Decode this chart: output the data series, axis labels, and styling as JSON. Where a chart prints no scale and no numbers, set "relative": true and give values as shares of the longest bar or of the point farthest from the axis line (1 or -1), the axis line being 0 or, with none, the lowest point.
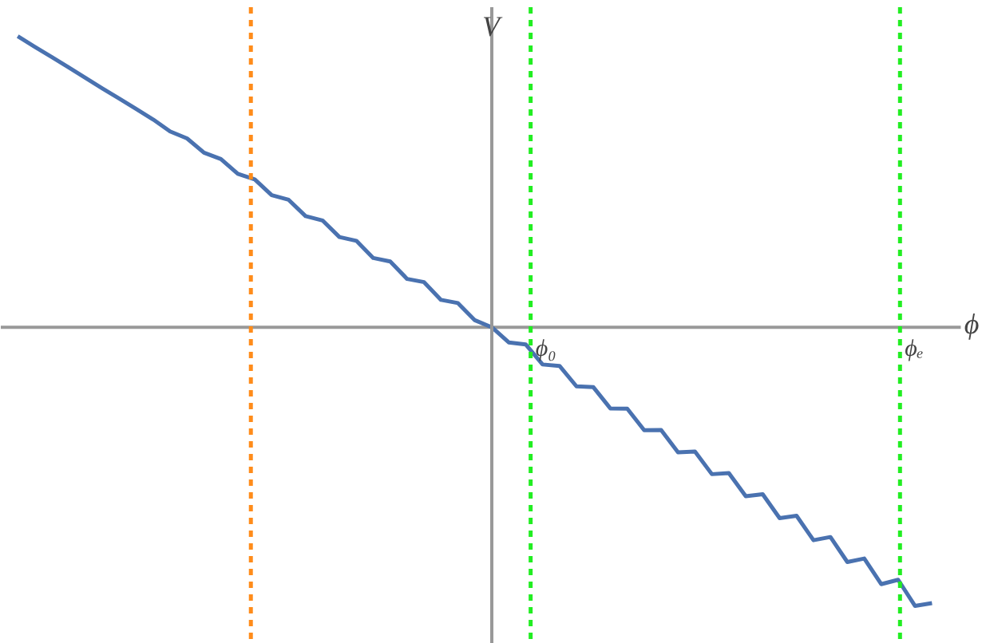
{
  "chart_data": {
    "type": "line",
    "relative": true,
    "xlabel": "ϕ",
    "ylabel": "V",
    "categories": [
      null,
      null,
      null,
      null,
      null,
      null,
      null,
      null,
      null,
      null,
      null,
      null,
      null,
      null,
      null,
      null,
      null,
      null,
      null,
      null,
      null,
      null,
      null,
      null,
      null,
      null,
      null,
      null,
      null,
      null,
      null,
      null,
      null,
      null,
      null,
      null,
      null,
      null,
      null,
      null,
      null,
      null,
      null,
      null,
      null,
      null,
      null,
      null,
      null,
      null,
      null,
      null,
      null,
      null,
      null
    ],
    "series": [
      {
        "color": "#4a72b0",
        "values": [
          1.0,
          0.964,
          0.929,
          0.893,
          0.857,
          0.821,
          0.786,
          0.75,
          0.714,
          0.673,
          0.649,
          0.6,
          0.578,
          0.527,
          0.508,
          0.454,
          0.438,
          0.382,
          0.367,
          0.31,
          0.297,
          0.238,
          0.226,
          0.166,
          0.155,
          0.094,
          0.083,
          0.024,
          0,
          -0.052,
          -0.059,
          -0.128,
          -0.133,
          -0.203,
          -0.206,
          -0.279,
          -0.28,
          -0.354,
          -0.353,
          -0.43,
          -0.427,
          -0.505,
          -0.501,
          -0.581,
          -0.574,
          -0.656,
          -0.648,
          -0.732,
          -0.721,
          -0.807,
          -0.795,
          -0.883,
          -0.868,
          -0.958,
          -0.948
        ]
      }
    ],
    "tick_labels": false,
    "grid": false,
    "marker": "none",
    "line_style": "solid",
    "annotations": [
      "ϕ₀",
      "ϕₑ"
    ]
  }
}
